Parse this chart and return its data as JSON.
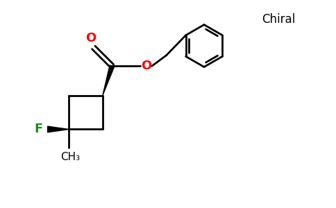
{
  "background_color": "#ffffff",
  "bond_color": "#000000",
  "o_color": "#ff0000",
  "f_color": "#228B22",
  "figsize": [
    4.84,
    3.0
  ],
  "dpi": 100,
  "chiral_text": "Chiral",
  "f_label": "F",
  "ch3_label": "CH₃",
  "o_label": "O",
  "carbonyl_o": "O"
}
